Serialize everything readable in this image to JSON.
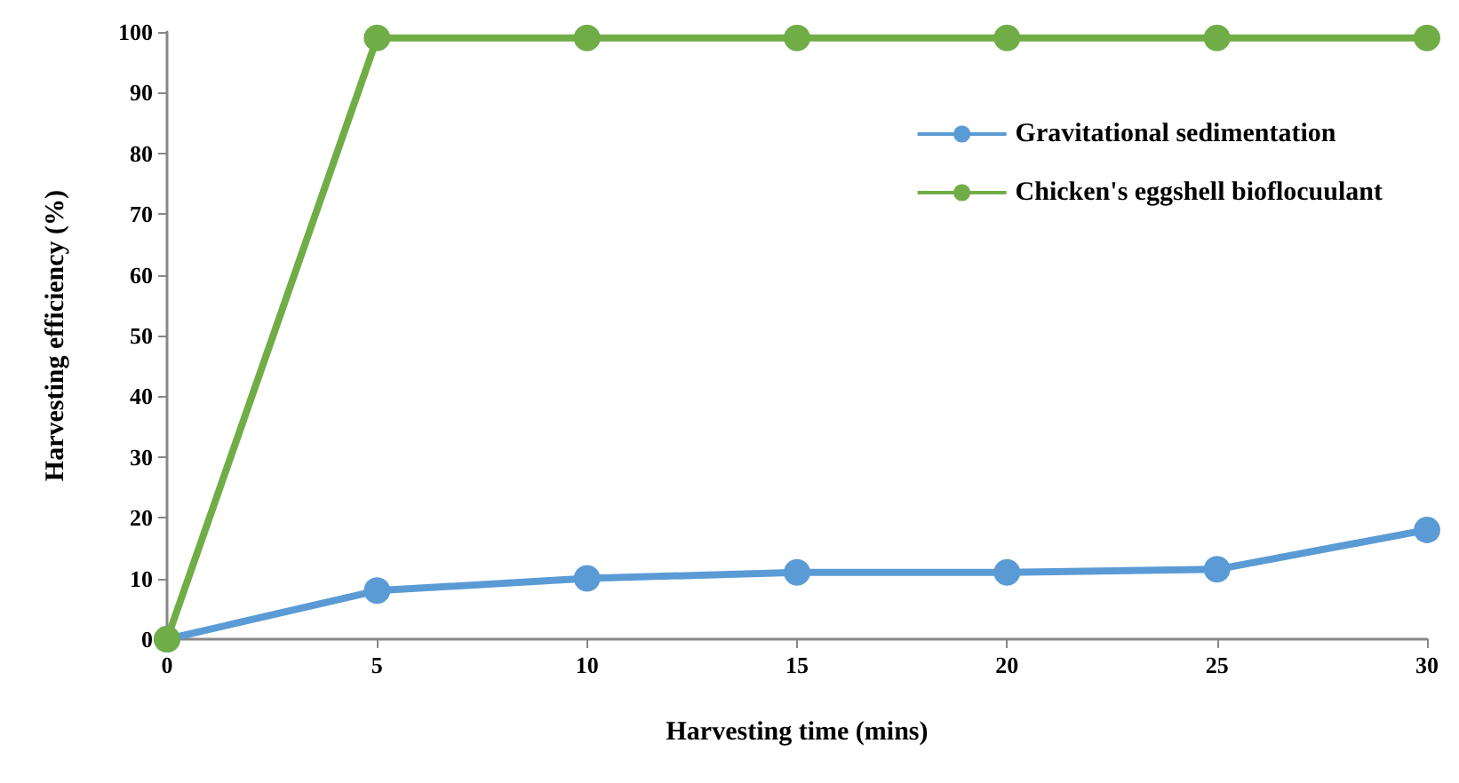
{
  "chart_data": {
    "type": "line",
    "xlabel": "Harvesting time (mins)",
    "ylabel": "Harvesting efficiency (%)",
    "x": [
      0,
      5,
      10,
      15,
      20,
      25,
      30
    ],
    "series": [
      {
        "name": "Gravitational sedimentation",
        "color": "#5b9bd5",
        "values": [
          0,
          8,
          10,
          11,
          11,
          11.5,
          18
        ]
      },
      {
        "name": "Chicken's eggshell bioflocuulant",
        "color": "#70ad47",
        "values": [
          0,
          99,
          99,
          99,
          99,
          99,
          99
        ]
      }
    ],
    "xlim": [
      0,
      30
    ],
    "xticks": [
      0,
      5,
      10,
      15,
      20,
      25,
      30
    ],
    "ylim": [
      0,
      100
    ],
    "yticks": [
      0,
      10,
      20,
      30,
      40,
      50,
      60,
      70,
      80,
      90,
      100
    ],
    "grid": false,
    "legend": "top right",
    "marker": "circle",
    "line_style": "solid"
  }
}
